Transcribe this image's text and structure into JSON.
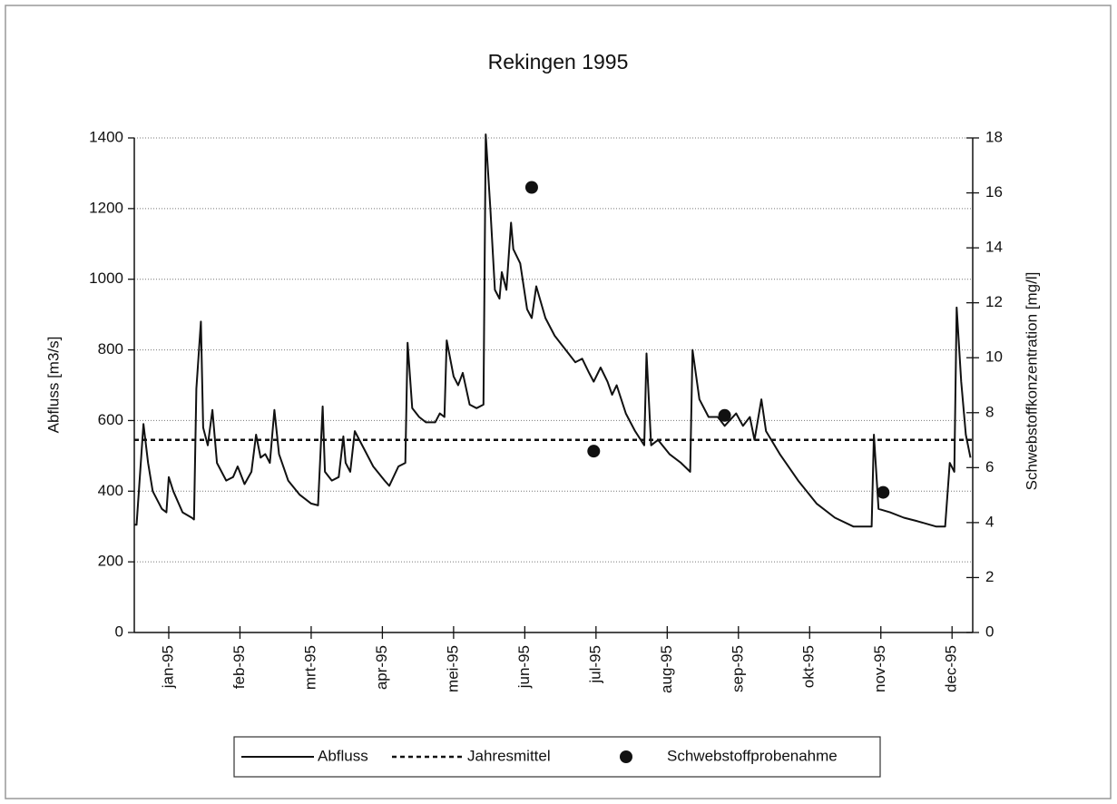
{
  "chart_data": {
    "type": "line",
    "title": "Rekingen 1995",
    "ylabel": "Abfluss [m3/s]",
    "y2label": "Schwebstoffkonzentration [mg/l]",
    "xlim": [
      0,
      365
    ],
    "xticks": [
      {
        "value": 15,
        "label": "jan-95"
      },
      {
        "value": 46,
        "label": "feb-95"
      },
      {
        "value": 77,
        "label": "mrt-95"
      },
      {
        "value": 108,
        "label": "apr-95"
      },
      {
        "value": 139,
        "label": "mei-95"
      },
      {
        "value": 170,
        "label": "jun-95"
      },
      {
        "value": 201,
        "label": "jul-95"
      },
      {
        "value": 232,
        "label": "aug-95"
      },
      {
        "value": 263,
        "label": "sep-95"
      },
      {
        "value": 294,
        "label": "okt-95"
      },
      {
        "value": 325,
        "label": "nov-95"
      },
      {
        "value": 356,
        "label": "dec-95"
      }
    ],
    "ylim": [
      0,
      1400
    ],
    "yticks": [
      0,
      200,
      400,
      600,
      800,
      1000,
      1200,
      1400
    ],
    "y2lim": [
      0,
      18
    ],
    "y2ticks": [
      0,
      2,
      4,
      6,
      8,
      10,
      12,
      14,
      16,
      18
    ],
    "grid": true,
    "legend": "bottom",
    "series": [
      {
        "name": "Abfluss",
        "type": "line",
        "color": "#111111",
        "x": [
          0,
          1,
          4,
          6,
          8,
          12,
          14,
          15,
          17,
          21,
          25,
          26,
          27,
          29,
          30,
          32,
          34,
          36,
          40,
          43,
          45,
          48,
          51,
          53,
          55,
          57,
          59,
          61,
          63,
          67,
          72,
          77,
          80,
          82,
          83,
          86,
          89,
          91,
          92,
          94,
          96,
          100,
          104,
          109,
          111,
          115,
          118,
          119,
          121,
          124,
          127,
          131,
          133,
          135,
          136,
          139,
          141,
          143,
          146,
          149,
          152,
          153,
          155,
          157,
          159,
          160,
          162,
          164,
          165,
          168,
          171,
          173,
          175,
          179,
          183,
          189,
          192,
          195,
          198,
          200,
          203,
          206,
          208,
          210,
          214,
          218,
          222,
          223,
          225,
          228,
          233,
          238,
          242,
          243,
          246,
          250,
          254,
          257,
          262,
          265,
          268,
          270,
          273,
          275,
          281,
          289,
          297,
          305,
          313,
          321,
          322,
          324,
          329,
          335,
          341,
          349,
          353,
          355,
          357,
          358,
          360,
          362,
          364
        ],
        "values": [
          305,
          305,
          590,
          480,
          400,
          350,
          340,
          440,
          400,
          340,
          325,
          320,
          690,
          880,
          580,
          530,
          630,
          480,
          430,
          440,
          470,
          420,
          455,
          560,
          495,
          505,
          480,
          630,
          505,
          430,
          390,
          365,
          360,
          640,
          455,
          430,
          440,
          555,
          480,
          455,
          570,
          520,
          470,
          430,
          415,
          470,
          480,
          820,
          635,
          610,
          595,
          595,
          620,
          610,
          827,
          725,
          700,
          735,
          645,
          635,
          645,
          1410,
          1200,
          970,
          945,
          1020,
          970,
          1160,
          1085,
          1045,
          915,
          890,
          980,
          890,
          840,
          790,
          765,
          775,
          735,
          710,
          750,
          710,
          673,
          700,
          620,
          570,
          530,
          790,
          530,
          545,
          505,
          480,
          455,
          800,
          660,
          610,
          610,
          585,
          620,
          585,
          610,
          545,
          660,
          570,
          505,
          430,
          365,
          325,
          300,
          300,
          560,
          350,
          340,
          325,
          315,
          300,
          300,
          480,
          455,
          920,
          710,
          560,
          495
        ]
      },
      {
        "name": "Jahresmittel",
        "type": "line",
        "dash": true,
        "color": "#111111",
        "x": [
          0,
          365
        ],
        "values": [
          545,
          545
        ]
      },
      {
        "name": "Schwebstoffprobenahme",
        "type": "scatter",
        "axis": "y2",
        "color": "#111111",
        "x": [
          173,
          200,
          257,
          326
        ],
        "values": [
          16.2,
          6.6,
          7.9,
          5.1
        ]
      }
    ]
  }
}
